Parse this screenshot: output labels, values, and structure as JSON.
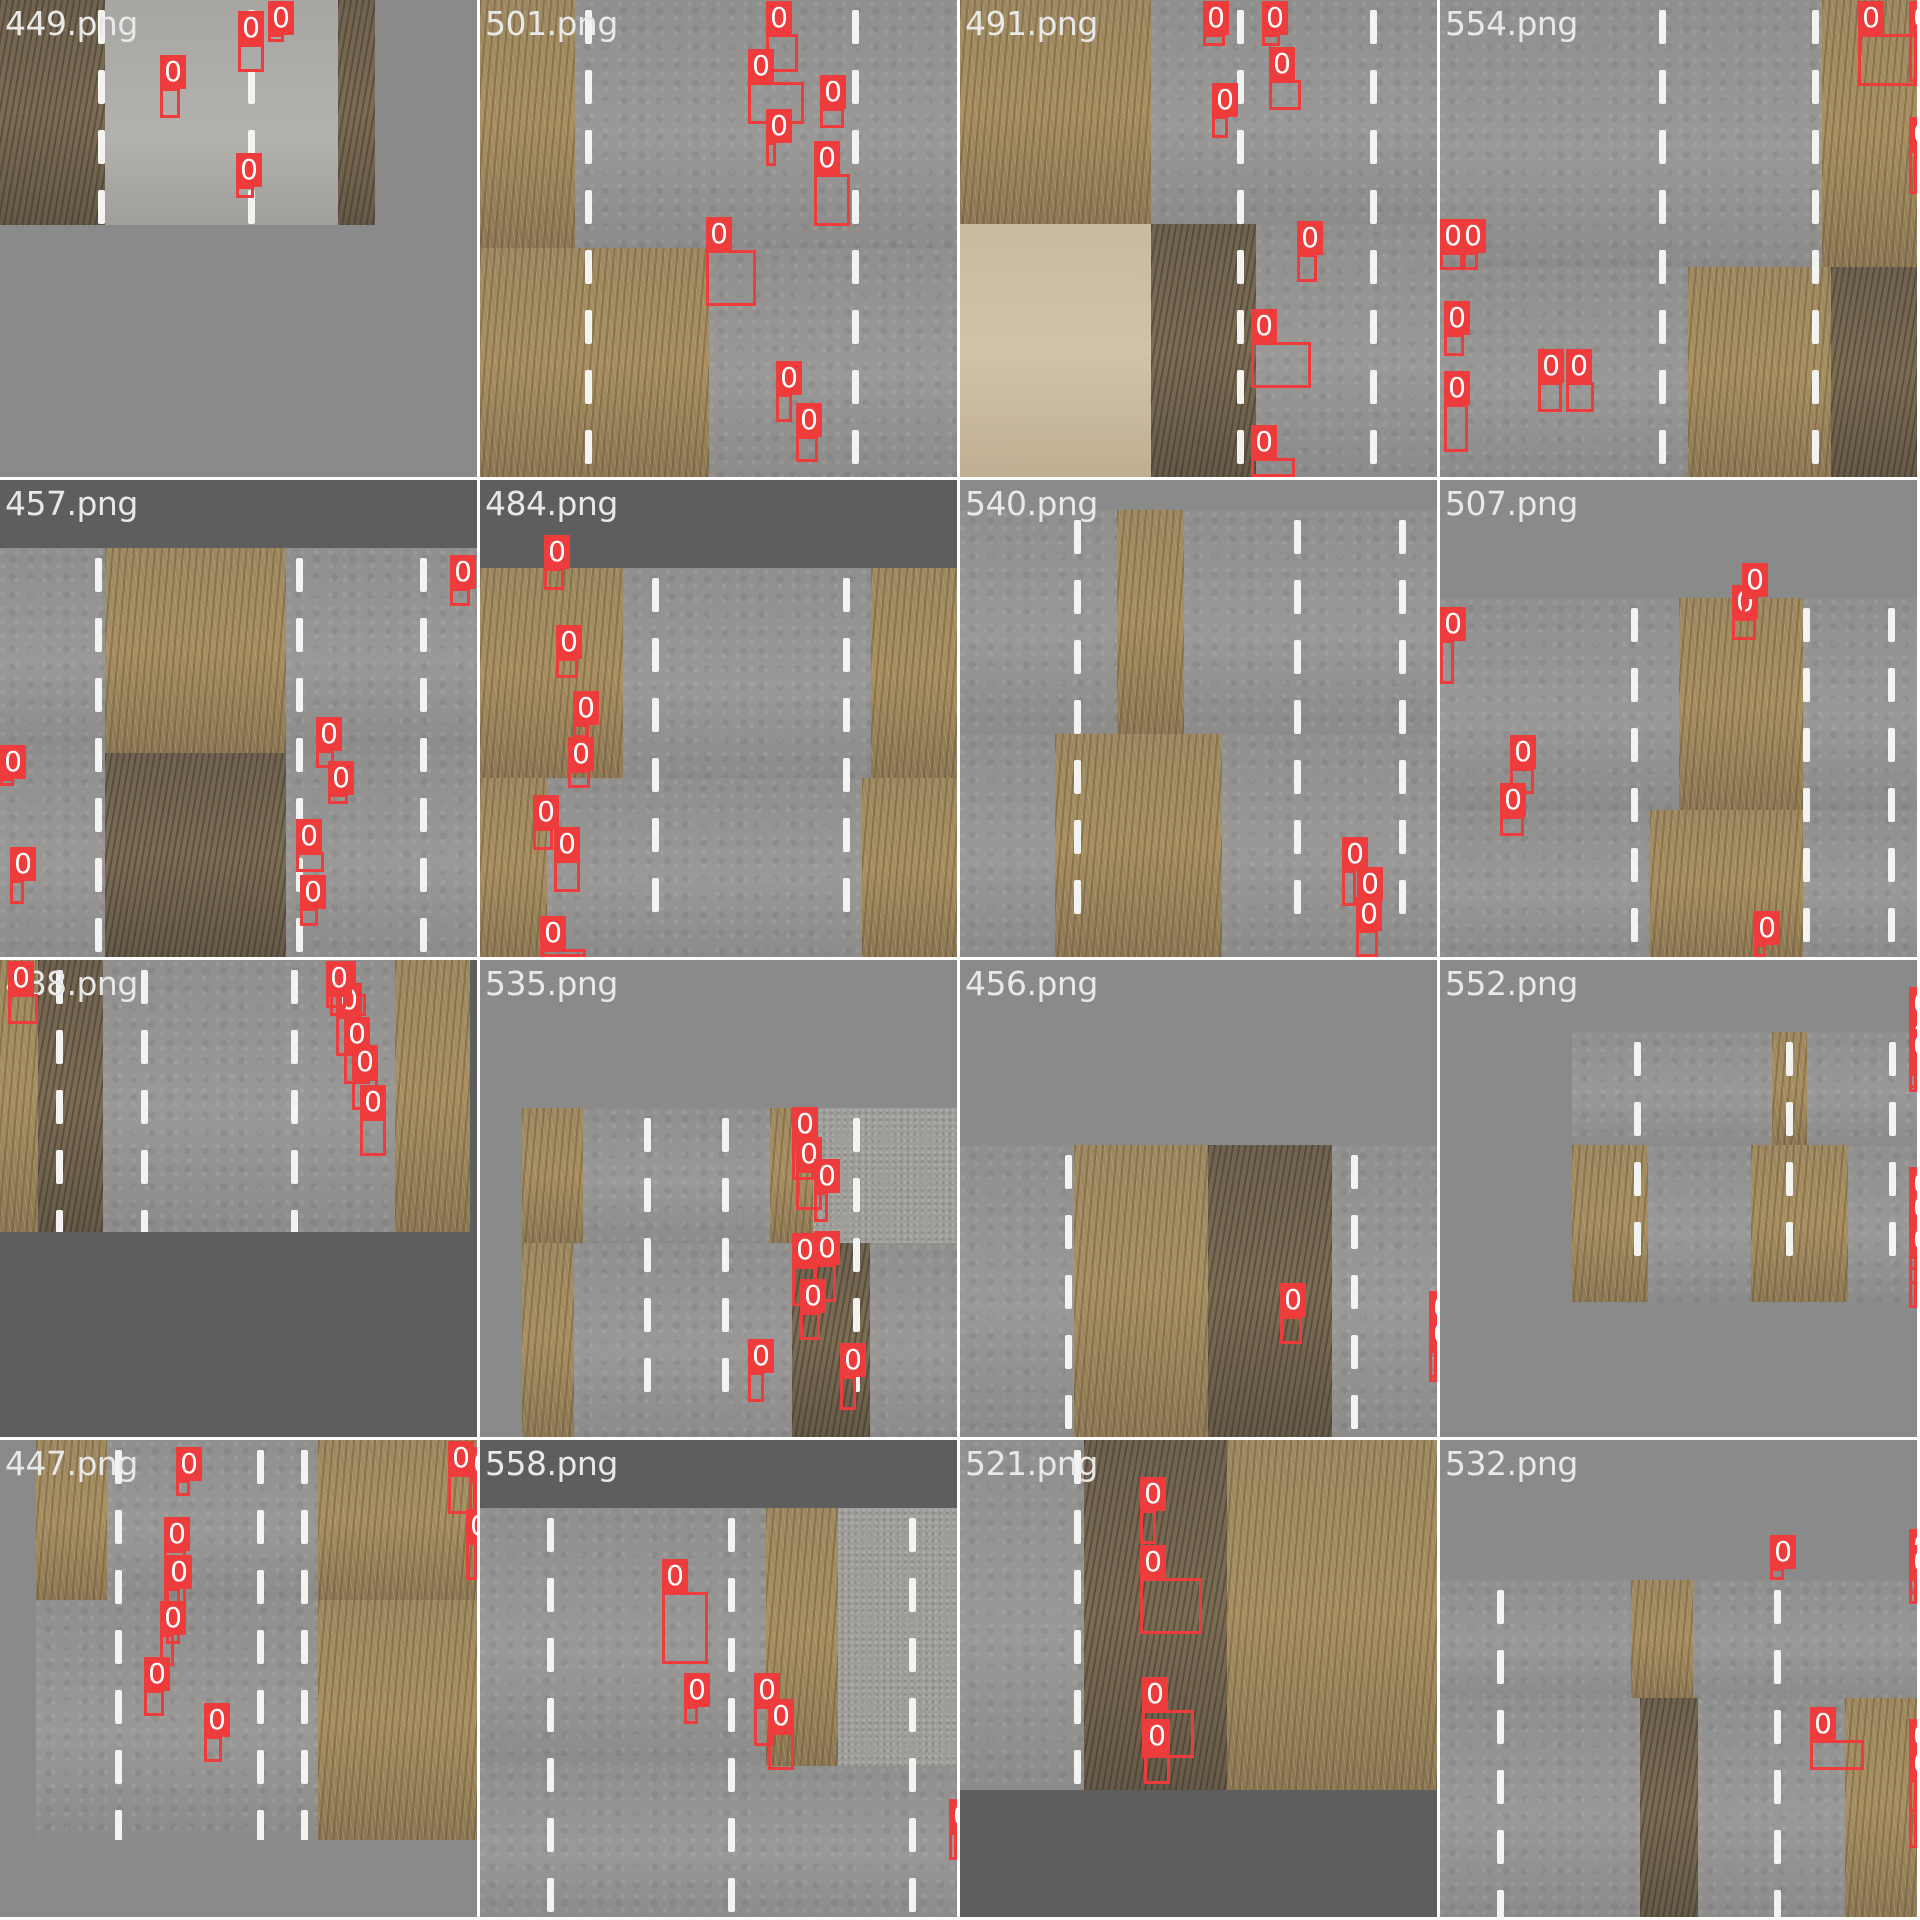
{
  "tiles": [
    {
      "title": "449.png",
      "boxes": [
        {
          "label": "0",
          "sel": false
        },
        {
          "label": "0",
          "sel": false
        },
        {
          "label": "0",
          "sel": false
        },
        {
          "label": "0",
          "sel": false
        }
      ]
    },
    {
      "title": "501.png",
      "boxes": [
        {
          "label": "0"
        },
        {
          "label": "0"
        },
        {
          "label": "0"
        },
        {
          "label": "0"
        },
        {
          "label": "0"
        },
        {
          "label": "0"
        },
        {
          "label": "0"
        },
        {
          "label": "0"
        }
      ]
    },
    {
      "title": "491.png",
      "boxes": [
        {
          "label": "0"
        },
        {
          "label": "0"
        },
        {
          "label": "0"
        },
        {
          "label": "0"
        },
        {
          "label": "0"
        },
        {
          "label": "0"
        },
        {
          "label": "0"
        }
      ]
    },
    {
      "title": "554.png",
      "boxes": [
        {
          "label": "0"
        },
        {
          "label": "0"
        },
        {
          "label": "0"
        },
        {
          "label": "0"
        },
        {
          "label": "0"
        },
        {
          "label": "0"
        },
        {
          "label": "0"
        },
        {
          "label": "0"
        },
        {
          "label": "0"
        }
      ]
    },
    {
      "title": "457.png",
      "boxes": [
        {
          "label": "0"
        },
        {
          "label": "0"
        },
        {
          "label": "0"
        },
        {
          "label": "0"
        },
        {
          "label": "0"
        },
        {
          "label": "0"
        },
        {
          "label": "0"
        }
      ]
    },
    {
      "title": "484.png",
      "boxes": [
        {
          "label": "0"
        },
        {
          "label": "0"
        },
        {
          "label": "0"
        },
        {
          "label": "0"
        },
        {
          "label": "0"
        },
        {
          "label": "0"
        },
        {
          "label": "0"
        }
      ]
    },
    {
      "title": "540.png",
      "boxes": [
        {
          "label": "0"
        },
        {
          "label": "0"
        },
        {
          "label": "0"
        }
      ]
    },
    {
      "title": "507.png",
      "boxes": [
        {
          "label": "0"
        },
        {
          "label": "0"
        },
        {
          "label": "0"
        },
        {
          "label": "0"
        },
        {
          "label": "0"
        },
        {
          "label": "0"
        }
      ]
    },
    {
      "title": "488.png",
      "boxes": [
        {
          "label": "0"
        },
        {
          "label": "0"
        },
        {
          "label": "0"
        },
        {
          "label": "0"
        },
        {
          "label": "0"
        },
        {
          "label": "0"
        },
        {
          "label": "0"
        }
      ]
    },
    {
      "title": "535.png",
      "boxes": [
        {
          "label": "0"
        },
        {
          "label": "0"
        },
        {
          "label": "0"
        },
        {
          "label": "0"
        },
        {
          "label": "0"
        },
        {
          "label": "0"
        },
        {
          "label": "0"
        },
        {
          "label": "0"
        }
      ]
    },
    {
      "title": "456.png",
      "boxes": [
        {
          "label": "0"
        },
        {
          "label": "0"
        },
        {
          "label": "0"
        },
        {
          "label": "0"
        }
      ]
    },
    {
      "title": "552.png",
      "boxes": [
        {
          "label": "0"
        },
        {
          "label": "0"
        },
        {
          "label": "0"
        },
        {
          "label": "0"
        },
        {
          "label": "0"
        },
        {
          "label": "0"
        },
        {
          "label": "0"
        }
      ]
    },
    {
      "title": "447.png",
      "boxes": [
        {
          "label": "0"
        },
        {
          "label": "0"
        },
        {
          "label": "0"
        },
        {
          "label": "0"
        },
        {
          "label": "0"
        },
        {
          "label": "0"
        },
        {
          "label": "0"
        },
        {
          "label": "0"
        },
        {
          "label": "0"
        }
      ]
    },
    {
      "title": "558.png",
      "boxes": [
        {
          "label": "0"
        },
        {
          "label": "0"
        },
        {
          "label": "0"
        },
        {
          "label": "0"
        },
        {
          "label": "0"
        }
      ]
    },
    {
      "title": "521.png",
      "boxes": [
        {
          "label": "0"
        },
        {
          "label": "0"
        },
        {
          "label": "0"
        },
        {
          "label": "0"
        }
      ]
    },
    {
      "title": "532.png",
      "boxes": [
        {
          "label": "0"
        },
        {
          "label": "0"
        },
        {
          "label": "0"
        },
        {
          "label": "0"
        },
        {
          "label": "0"
        },
        {
          "label": "0"
        }
      ]
    }
  ],
  "colors": {
    "box": "#ee3b3b",
    "title": "#e8e8e8",
    "padding_gray": "#8a8a8a"
  }
}
